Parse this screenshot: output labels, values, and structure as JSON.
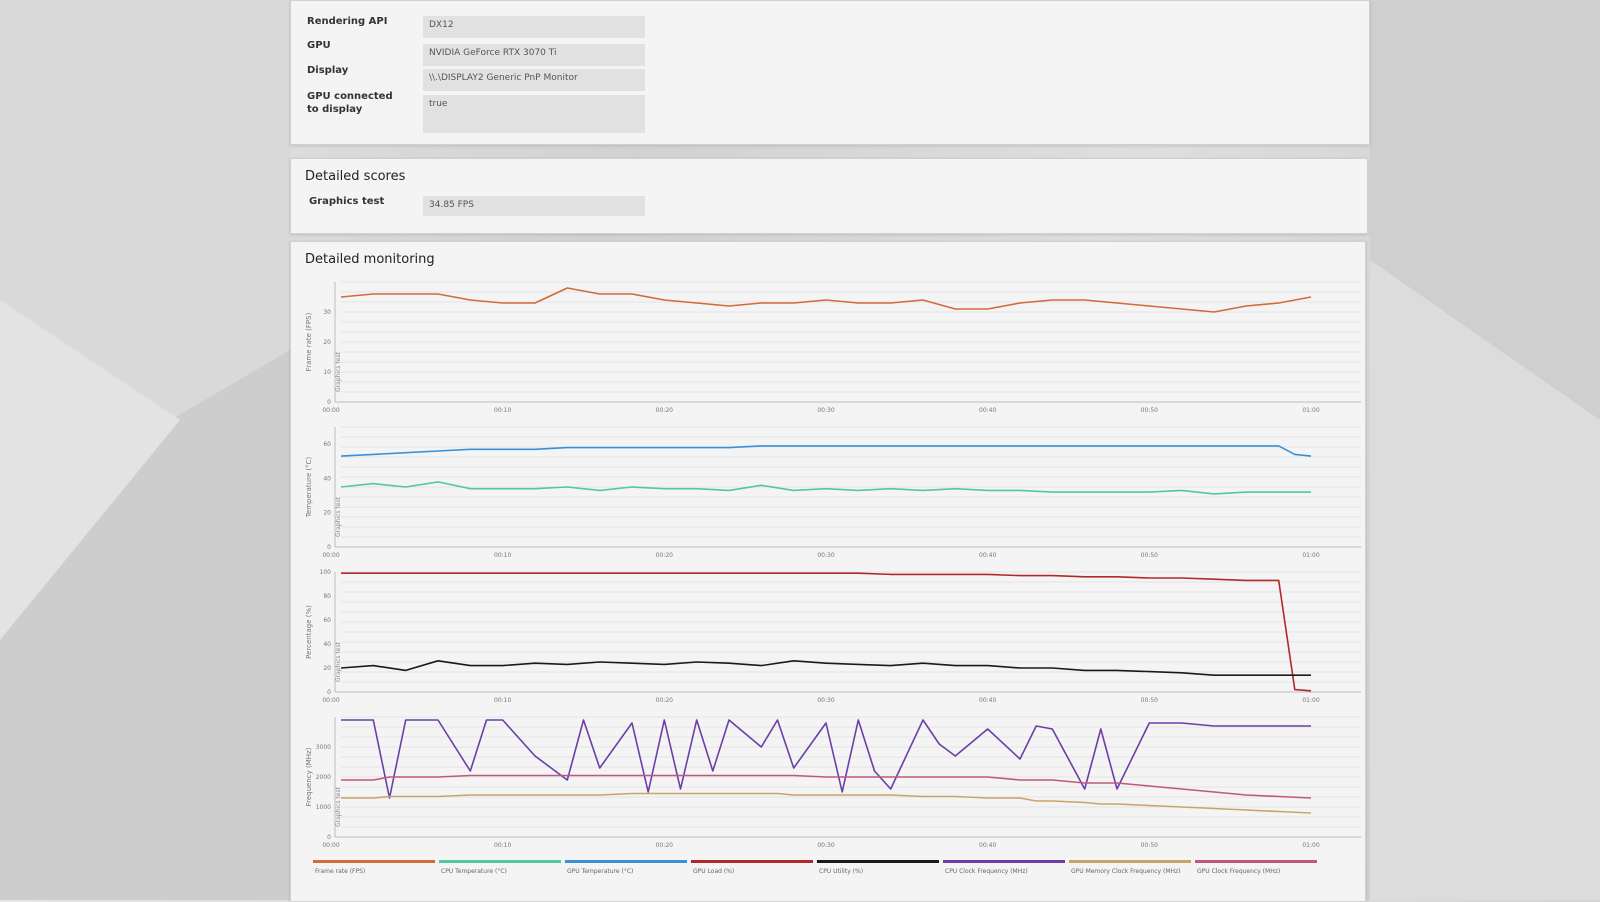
{
  "system_info": {
    "rows": [
      {
        "label": "Rendering API",
        "value": "DX12"
      },
      {
        "label": "GPU",
        "value": "NVIDIA GeForce RTX 3070 Ti"
      },
      {
        "label": "Display",
        "value": "\\\\.\\DISPLAY2 Generic PnP Monitor"
      },
      {
        "label": "GPU connected to display",
        "value": "true"
      }
    ]
  },
  "detailed_scores": {
    "title": "Detailed scores",
    "rows": [
      {
        "label": "Graphics test",
        "value": "34.85 FPS"
      }
    ]
  },
  "detailed_monitoring": {
    "title": "Detailed monitoring",
    "x_ticks": [
      "00:00",
      "00:10",
      "00:20",
      "00:30",
      "00:40",
      "00:50",
      "01:00"
    ],
    "segment_label": "Graphics test",
    "legend": [
      {
        "label": "Frame rate (FPS)",
        "color": "#d4693a"
      },
      {
        "label": "CPU Temperature (°C)",
        "color": "#4fc9a0"
      },
      {
        "label": "GPU Temperature (°C)",
        "color": "#3b8fd6"
      },
      {
        "label": "GPU Load (%)",
        "color": "#b02a2a"
      },
      {
        "label": "CPU Utility (%)",
        "color": "#1a1a1a"
      },
      {
        "label": "CPU Clock Frequency (MHz)",
        "color": "#6b3fa6"
      },
      {
        "label": "GPU Memory Clock Frequency (MHz)",
        "color": "#c9a46a"
      },
      {
        "label": "GPU Clock Frequency (MHz)",
        "color": "#c0587a"
      }
    ]
  },
  "chart_data": [
    {
      "type": "line",
      "ylabel": "Frame rate (FPS)",
      "ylim": [
        0,
        40
      ],
      "yticks": [
        "0",
        "10",
        "20",
        "30"
      ],
      "x": [
        0,
        2,
        4,
        6,
        8,
        10,
        12,
        14,
        16,
        18,
        20,
        22,
        24,
        26,
        28,
        30,
        32,
        34,
        36,
        38,
        40,
        42,
        44,
        46,
        48,
        50,
        52,
        54,
        56,
        58,
        60
      ],
      "series": [
        {
          "name": "Frame rate (FPS)",
          "color": "#d4693a",
          "values": [
            35,
            36,
            36,
            36,
            34,
            33,
            33,
            38,
            36,
            36,
            34,
            33,
            32,
            33,
            33,
            34,
            33,
            33,
            34,
            31,
            31,
            33,
            34,
            34,
            33,
            32,
            31,
            30,
            32,
            33,
            35
          ]
        }
      ]
    },
    {
      "type": "line",
      "ylabel": "Temperature (°C)",
      "ylim": [
        0,
        70
      ],
      "yticks": [
        "0",
        "20",
        "40",
        "60"
      ],
      "x": [
        0,
        2,
        4,
        6,
        8,
        10,
        12,
        14,
        16,
        18,
        20,
        22,
        24,
        26,
        28,
        30,
        32,
        34,
        36,
        38,
        40,
        42,
        44,
        46,
        48,
        50,
        52,
        54,
        56,
        58,
        59,
        60
      ],
      "series": [
        {
          "name": "GPU Temperature (°C)",
          "color": "#3b8fd6",
          "values": [
            53,
            54,
            55,
            56,
            57,
            57,
            57,
            58,
            58,
            58,
            58,
            58,
            58,
            59,
            59,
            59,
            59,
            59,
            59,
            59,
            59,
            59,
            59,
            59,
            59,
            59,
            59,
            59,
            59,
            59,
            54,
            53
          ]
        },
        {
          "name": "CPU Temperature (°C)",
          "color": "#4fc9a0",
          "values": [
            35,
            37,
            35,
            38,
            34,
            34,
            34,
            35,
            33,
            35,
            34,
            34,
            33,
            36,
            33,
            34,
            33,
            34,
            33,
            34,
            33,
            33,
            32,
            32,
            32,
            32,
            33,
            31,
            32,
            32,
            32,
            32
          ]
        }
      ]
    },
    {
      "type": "line",
      "ylabel": "Percentage (%)",
      "ylim": [
        0,
        100
      ],
      "yticks": [
        "0",
        "20",
        "40",
        "60",
        "80",
        "100"
      ],
      "x": [
        0,
        2,
        4,
        6,
        8,
        10,
        12,
        14,
        16,
        18,
        20,
        22,
        24,
        26,
        28,
        30,
        32,
        34,
        36,
        38,
        40,
        42,
        44,
        46,
        48,
        50,
        52,
        54,
        56,
        58,
        59,
        60
      ],
      "series": [
        {
          "name": "GPU Load (%)",
          "color": "#b02a2a",
          "values": [
            99,
            99,
            99,
            99,
            99,
            99,
            99,
            99,
            99,
            99,
            99,
            99,
            99,
            99,
            99,
            99,
            99,
            98,
            98,
            98,
            98,
            97,
            97,
            96,
            96,
            95,
            95,
            94,
            93,
            93,
            2,
            1
          ]
        },
        {
          "name": "CPU Utility (%)",
          "color": "#1a1a1a",
          "values": [
            20,
            22,
            18,
            26,
            22,
            22,
            24,
            23,
            25,
            24,
            23,
            25,
            24,
            22,
            26,
            24,
            23,
            22,
            24,
            22,
            22,
            20,
            20,
            18,
            18,
            17,
            16,
            14,
            14,
            14,
            14,
            14
          ]
        }
      ]
    },
    {
      "type": "line",
      "ylabel": "Frequency (MHz)",
      "ylim": [
        0,
        4000
      ],
      "yticks": [
        "0",
        "1000",
        "2000",
        "3000"
      ],
      "x": [
        0,
        2,
        3,
        4,
        6,
        8,
        9,
        10,
        12,
        14,
        15,
        16,
        18,
        19,
        20,
        21,
        22,
        23,
        24,
        26,
        27,
        28,
        30,
        31,
        32,
        33,
        34,
        36,
        37,
        38,
        40,
        42,
        43,
        44,
        46,
        47,
        48,
        50,
        52,
        54,
        56,
        58,
        60
      ],
      "series": [
        {
          "name": "CPU Clock Frequency (MHz)",
          "color": "#6b3fa6",
          "values": [
            3900,
            3900,
            1300,
            3900,
            3900,
            2200,
            3900,
            3900,
            2700,
            1900,
            3900,
            2300,
            3800,
            1500,
            3900,
            1600,
            3900,
            2200,
            3900,
            3000,
            3900,
            2300,
            3800,
            1500,
            3900,
            2200,
            1600,
            3900,
            3100,
            2700,
            3600,
            2600,
            3700,
            3600,
            1600,
            3600,
            1600,
            3800,
            3800,
            3700,
            3700,
            3700,
            3700
          ]
        },
        {
          "name": "GPU Clock Frequency (MHz)",
          "color": "#c0587a",
          "values": [
            1900,
            1900,
            2000,
            2000,
            2000,
            2050,
            2050,
            2050,
            2050,
            2050,
            2050,
            2050,
            2050,
            2050,
            2050,
            2050,
            2050,
            2050,
            2050,
            2050,
            2050,
            2050,
            2000,
            2000,
            2000,
            2000,
            2000,
            2000,
            2000,
            2000,
            2000,
            1900,
            1900,
            1900,
            1800,
            1800,
            1800,
            1700,
            1600,
            1500,
            1400,
            1350,
            1300
          ]
        },
        {
          "name": "GPU Memory Clock Frequency (MHz)",
          "color": "#c9a46a",
          "values": [
            1300,
            1300,
            1350,
            1350,
            1350,
            1400,
            1400,
            1400,
            1400,
            1400,
            1400,
            1400,
            1450,
            1450,
            1450,
            1450,
            1450,
            1450,
            1450,
            1450,
            1450,
            1400,
            1400,
            1400,
            1400,
            1400,
            1400,
            1350,
            1350,
            1350,
            1300,
            1300,
            1200,
            1200,
            1150,
            1100,
            1100,
            1050,
            1000,
            950,
            900,
            850,
            800
          ]
        }
      ]
    }
  ]
}
